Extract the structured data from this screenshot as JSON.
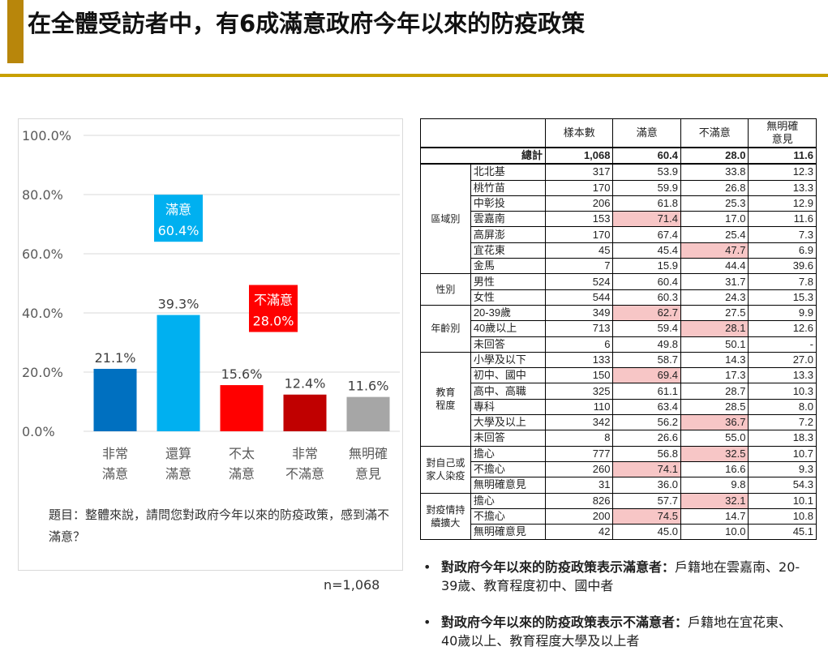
{
  "title": "在全體受訪者中，有6成滿意政府今年以來的防疫政策",
  "question": "題目：整體來說，請問您對政府今年以來的防疫政策，感到滿不滿意？",
  "n_label": "n=1,068",
  "chart_data": {
    "type": "bar",
    "categories": [
      [
        "非常",
        "滿意"
      ],
      [
        "還算",
        "滿意"
      ],
      [
        "不太",
        "滿意"
      ],
      [
        "非常",
        "不滿意"
      ],
      [
        "無明確",
        "意見"
      ]
    ],
    "values": [
      21.1,
      39.3,
      15.6,
      12.4,
      11.6
    ],
    "value_labels": [
      "21.1%",
      "39.3%",
      "15.6%",
      "12.4%",
      "11.6%"
    ],
    "colors": [
      "#0070c0",
      "#00b0f0",
      "#ff0000",
      "#c00000",
      "#a6a6a6"
    ],
    "ylim": [
      0,
      100
    ],
    "yticks": [
      "0.0%",
      "20.0%",
      "40.0%",
      "60.0%",
      "80.0%",
      "100.0%"
    ],
    "yticks_values": [
      0,
      20,
      40,
      60,
      80,
      100
    ],
    "grid": true,
    "callouts": [
      {
        "label": "滿意",
        "value": "60.4%",
        "color": "#00b0f0",
        "over": 1,
        "at": 72
      },
      {
        "label": "不滿意",
        "value": "28.0%",
        "color": "#ff0000",
        "over": 2.5,
        "at": 41.5
      }
    ]
  },
  "table": {
    "headers": [
      "樣本數",
      "滿意",
      "不滿意",
      "無明確\n意見"
    ],
    "total": {
      "label": "總計",
      "values": [
        "1,068",
        "60.4",
        "28.0",
        "11.6"
      ]
    },
    "groups": [
      {
        "label": "區域別",
        "rows": [
          {
            "label": "北北基",
            "values": [
              "317",
              "53.9",
              "33.8",
              "12.3"
            ],
            "hl": []
          },
          {
            "label": "桃竹苗",
            "values": [
              "170",
              "59.9",
              "26.8",
              "13.3"
            ],
            "hl": []
          },
          {
            "label": "中彰投",
            "values": [
              "206",
              "61.8",
              "25.3",
              "12.9"
            ],
            "hl": []
          },
          {
            "label": "雲嘉南",
            "values": [
              "153",
              "71.4",
              "17.0",
              "11.6"
            ],
            "hl": [
              1
            ]
          },
          {
            "label": "高屏澎",
            "values": [
              "170",
              "67.4",
              "25.4",
              "7.3"
            ],
            "hl": []
          },
          {
            "label": "宜花東",
            "values": [
              "45",
              "45.4",
              "47.7",
              "6.9"
            ],
            "hl": [
              2
            ]
          },
          {
            "label": "金馬",
            "values": [
              "7",
              "15.9",
              "44.4",
              "39.6"
            ],
            "hl": []
          }
        ]
      },
      {
        "label": "性別",
        "rows": [
          {
            "label": "男性",
            "values": [
              "524",
              "60.4",
              "31.7",
              "7.8"
            ],
            "hl": []
          },
          {
            "label": "女性",
            "values": [
              "544",
              "60.3",
              "24.3",
              "15.3"
            ],
            "hl": []
          }
        ]
      },
      {
        "label": "年齡別",
        "rows": [
          {
            "label": "20-39歲",
            "values": [
              "349",
              "62.7",
              "27.5",
              "9.9"
            ],
            "hl": [
              1
            ]
          },
          {
            "label": "40歲以上",
            "values": [
              "713",
              "59.4",
              "28.1",
              "12.6"
            ],
            "hl": [
              2
            ]
          },
          {
            "label": "未回答",
            "values": [
              "6",
              "49.8",
              "50.1",
              "-"
            ],
            "hl": []
          }
        ]
      },
      {
        "label": "教育\n程度",
        "rows": [
          {
            "label": "小學及以下",
            "values": [
              "133",
              "58.7",
              "14.3",
              "27.0"
            ],
            "hl": []
          },
          {
            "label": "初中、國中",
            "values": [
              "150",
              "69.4",
              "17.3",
              "13.3"
            ],
            "hl": [
              1
            ]
          },
          {
            "label": "高中、高職",
            "values": [
              "325",
              "61.1",
              "28.7",
              "10.3"
            ],
            "hl": []
          },
          {
            "label": "專科",
            "values": [
              "110",
              "63.4",
              "28.5",
              "8.0"
            ],
            "hl": []
          },
          {
            "label": "大學及以上",
            "values": [
              "342",
              "56.2",
              "36.7",
              "7.2"
            ],
            "hl": [
              2
            ]
          },
          {
            "label": "未回答",
            "values": [
              "8",
              "26.6",
              "55.0",
              "18.3"
            ],
            "hl": []
          }
        ]
      },
      {
        "label": "對自己或\n家人染疫",
        "rows": [
          {
            "label": "擔心",
            "values": [
              "777",
              "56.8",
              "32.5",
              "10.7"
            ],
            "hl": [
              2
            ]
          },
          {
            "label": "不擔心",
            "values": [
              "260",
              "74.1",
              "16.6",
              "9.3"
            ],
            "hl": [
              1
            ]
          },
          {
            "label": "無明確意見",
            "values": [
              "31",
              "36.0",
              "9.8",
              "54.3"
            ],
            "hl": []
          }
        ]
      },
      {
        "label": "對疫情持\n續擴大",
        "rows": [
          {
            "label": "擔心",
            "values": [
              "826",
              "57.7",
              "32.1",
              "10.1"
            ],
            "hl": [
              2
            ]
          },
          {
            "label": "不擔心",
            "values": [
              "200",
              "74.5",
              "14.7",
              "10.8"
            ],
            "hl": [
              1
            ]
          },
          {
            "label": "無明確意見",
            "values": [
              "42",
              "45.0",
              "10.0",
              "45.1"
            ],
            "hl": []
          }
        ]
      }
    ]
  },
  "bullets": [
    {
      "bold": "對政府今年以來的防疫政策表示滿意者：",
      "text": "戶籍地在雲嘉南、20-39歲、教育程度初中、國中者"
    },
    {
      "bold": "對政府今年以來的防疫政策表示不滿意者：",
      "text": "戶籍地在宜花東、40歲以上、教育程度大學及以上者"
    }
  ]
}
